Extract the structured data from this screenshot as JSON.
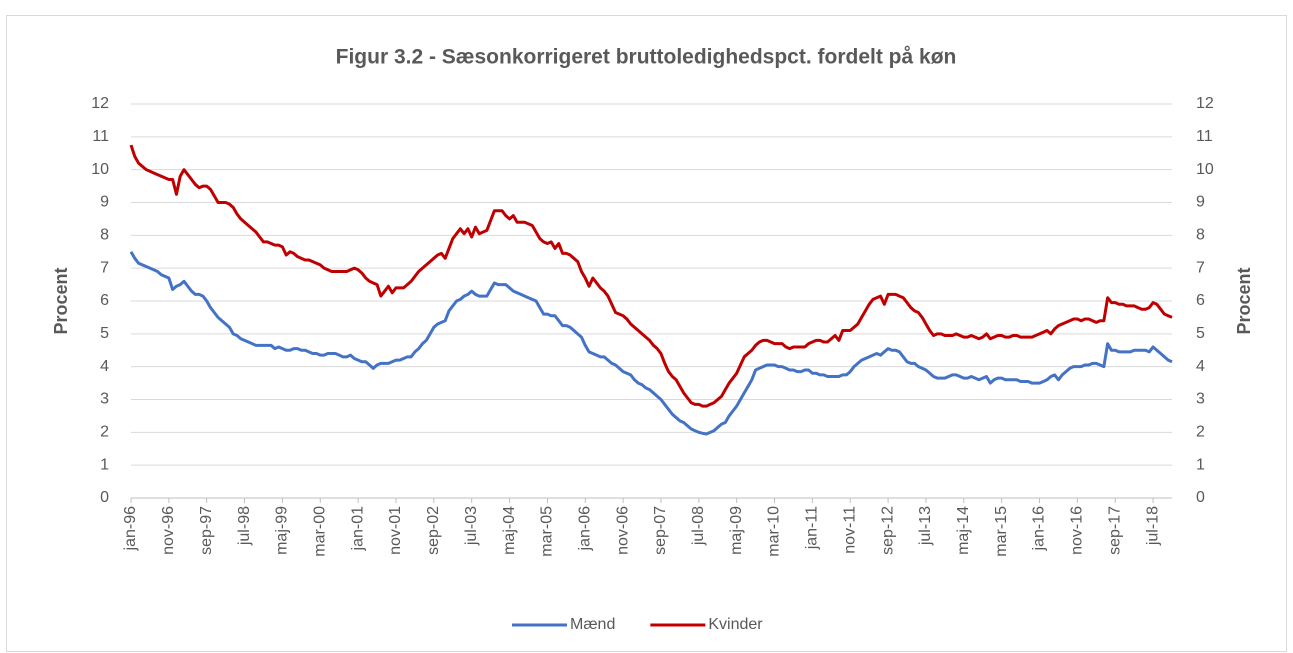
{
  "chart_data": {
    "type": "line",
    "title": "Figur 3.2 - Sæsonkorrigeret bruttoledighedspct. fordelt på køn",
    "y_label": "Procent",
    "y2_label": "Procent",
    "categories": [
      "jan-96",
      null,
      null,
      null,
      null,
      null,
      null,
      null,
      null,
      null,
      "nov-96",
      null,
      null,
      null,
      null,
      null,
      null,
      null,
      null,
      null,
      "sep-97",
      null,
      null,
      null,
      null,
      null,
      null,
      null,
      null,
      null,
      "jul-98",
      null,
      null,
      null,
      null,
      null,
      null,
      null,
      null,
      null,
      "maj-99",
      null,
      null,
      null,
      null,
      null,
      null,
      null,
      null,
      null,
      "mar-00",
      null,
      null,
      null,
      null,
      null,
      null,
      null,
      null,
      null,
      "jan-01",
      null,
      null,
      null,
      null,
      null,
      null,
      null,
      null,
      null,
      "nov-01",
      null,
      null,
      null,
      null,
      null,
      null,
      null,
      null,
      null,
      "sep-02",
      null,
      null,
      null,
      null,
      null,
      null,
      null,
      null,
      null,
      "jul-03",
      null,
      null,
      null,
      null,
      null,
      null,
      null,
      null,
      null,
      "maj-04",
      null,
      null,
      null,
      null,
      null,
      null,
      null,
      null,
      null,
      "mar-05",
      null,
      null,
      null,
      null,
      null,
      null,
      null,
      null,
      null,
      "jan-06",
      null,
      null,
      null,
      null,
      null,
      null,
      null,
      null,
      null,
      "nov-06",
      null,
      null,
      null,
      null,
      null,
      null,
      null,
      null,
      null,
      "sep-07",
      null,
      null,
      null,
      null,
      null,
      null,
      null,
      null,
      null,
      "jul-08",
      null,
      null,
      null,
      null,
      null,
      null,
      null,
      null,
      null,
      "maj-09",
      null,
      null,
      null,
      null,
      null,
      null,
      null,
      null,
      null,
      "mar-10",
      null,
      null,
      null,
      null,
      null,
      null,
      null,
      null,
      null,
      "jan-11",
      null,
      null,
      null,
      null,
      null,
      null,
      null,
      null,
      null,
      "nov-11",
      null,
      null,
      null,
      null,
      null,
      null,
      null,
      null,
      null,
      "sep-12",
      null,
      null,
      null,
      null,
      null,
      null,
      null,
      null,
      null,
      "jul-13",
      null,
      null,
      null,
      null,
      null,
      null,
      null,
      null,
      null,
      "maj-14",
      null,
      null,
      null,
      null,
      null,
      null,
      null,
      null,
      null,
      "mar-15",
      null,
      null,
      null,
      null,
      null,
      null,
      null,
      null,
      null,
      "jan-16",
      null,
      null,
      null,
      null,
      null,
      null,
      null,
      null,
      null,
      "nov-16",
      null,
      null,
      null,
      null,
      null,
      null,
      null,
      null,
      null,
      "sep-17",
      null,
      null,
      null,
      null,
      null,
      null,
      null,
      null,
      null,
      "jul-18",
      null,
      null,
      null,
      null,
      null
    ],
    "series": [
      {
        "name": "Mænd",
        "color": "#4472c4",
        "values": [
          7.5,
          7.3,
          7.15,
          7.1,
          7.05,
          7.0,
          6.95,
          6.9,
          6.8,
          6.75,
          6.7,
          6.35,
          6.45,
          6.5,
          6.6,
          6.45,
          6.3,
          6.2,
          6.2,
          6.15,
          6.0,
          5.8,
          5.65,
          5.5,
          5.4,
          5.3,
          5.2,
          5.0,
          4.95,
          4.85,
          4.8,
          4.75,
          4.7,
          4.65,
          4.65,
          4.65,
          4.65,
          4.65,
          4.55,
          4.6,
          4.55,
          4.5,
          4.5,
          4.55,
          4.55,
          4.5,
          4.5,
          4.45,
          4.4,
          4.4,
          4.35,
          4.35,
          4.4,
          4.4,
          4.4,
          4.35,
          4.3,
          4.3,
          4.35,
          4.25,
          4.2,
          4.15,
          4.15,
          4.05,
          3.95,
          4.05,
          4.1,
          4.1,
          4.1,
          4.15,
          4.2,
          4.2,
          4.25,
          4.3,
          4.3,
          4.45,
          4.55,
          4.7,
          4.8,
          5.0,
          5.2,
          5.3,
          5.35,
          5.4,
          5.7,
          5.85,
          6.0,
          6.05,
          6.15,
          6.2,
          6.3,
          6.2,
          6.15,
          6.15,
          6.15,
          6.35,
          6.55,
          6.5,
          6.5,
          6.5,
          6.4,
          6.3,
          6.25,
          6.2,
          6.15,
          6.1,
          6.05,
          6.0,
          5.8,
          5.6,
          5.6,
          5.55,
          5.55,
          5.4,
          5.25,
          5.25,
          5.2,
          5.1,
          5.0,
          4.9,
          4.65,
          4.45,
          4.4,
          4.35,
          4.3,
          4.3,
          4.2,
          4.1,
          4.05,
          3.95,
          3.85,
          3.8,
          3.75,
          3.6,
          3.5,
          3.45,
          3.35,
          3.3,
          3.2,
          3.1,
          3.0,
          2.85,
          2.7,
          2.55,
          2.45,
          2.35,
          2.3,
          2.2,
          2.1,
          2.05,
          2.0,
          1.97,
          1.95,
          2.0,
          2.05,
          2.15,
          2.25,
          2.3,
          2.5,
          2.65,
          2.8,
          3.0,
          3.2,
          3.4,
          3.6,
          3.9,
          3.95,
          4.0,
          4.05,
          4.05,
          4.05,
          4.0,
          4.0,
          3.95,
          3.9,
          3.9,
          3.85,
          3.85,
          3.9,
          3.9,
          3.8,
          3.8,
          3.75,
          3.75,
          3.7,
          3.7,
          3.7,
          3.7,
          3.75,
          3.75,
          3.85,
          4.0,
          4.1,
          4.2,
          4.25,
          4.3,
          4.35,
          4.4,
          4.35,
          4.45,
          4.55,
          4.5,
          4.5,
          4.45,
          4.3,
          4.15,
          4.1,
          4.1,
          4.0,
          3.95,
          3.9,
          3.8,
          3.7,
          3.65,
          3.65,
          3.65,
          3.7,
          3.75,
          3.75,
          3.7,
          3.65,
          3.65,
          3.7,
          3.65,
          3.6,
          3.65,
          3.7,
          3.5,
          3.6,
          3.65,
          3.65,
          3.6,
          3.6,
          3.6,
          3.6,
          3.55,
          3.55,
          3.55,
          3.5,
          3.5,
          3.5,
          3.55,
          3.6,
          3.7,
          3.75,
          3.6,
          3.75,
          3.85,
          3.95,
          4.0,
          4.0,
          4.0,
          4.05,
          4.05,
          4.1,
          4.1,
          4.05,
          4.0,
          4.7,
          4.5,
          4.5,
          4.45,
          4.45,
          4.45,
          4.45,
          4.5,
          4.5,
          4.5,
          4.5,
          4.45,
          4.6,
          4.5,
          4.4,
          4.3,
          4.2,
          4.15
        ]
      },
      {
        "name": "Kvinder",
        "color": "#c00000",
        "values": [
          10.75,
          10.4,
          10.2,
          10.1,
          10.0,
          9.95,
          9.9,
          9.85,
          9.8,
          9.75,
          9.7,
          9.7,
          9.25,
          9.8,
          10.0,
          9.85,
          9.7,
          9.55,
          9.45,
          9.5,
          9.5,
          9.4,
          9.2,
          9.0,
          9.0,
          9.0,
          8.95,
          8.85,
          8.65,
          8.5,
          8.4,
          8.3,
          8.2,
          8.1,
          7.95,
          7.8,
          7.8,
          7.75,
          7.7,
          7.7,
          7.65,
          7.4,
          7.5,
          7.45,
          7.35,
          7.3,
          7.25,
          7.25,
          7.2,
          7.15,
          7.1,
          7.0,
          6.95,
          6.9,
          6.9,
          6.9,
          6.9,
          6.9,
          6.95,
          7.0,
          6.95,
          6.85,
          6.7,
          6.6,
          6.55,
          6.5,
          6.15,
          6.3,
          6.45,
          6.25,
          6.4,
          6.4,
          6.4,
          6.5,
          6.6,
          6.75,
          6.9,
          7.0,
          7.1,
          7.2,
          7.3,
          7.4,
          7.45,
          7.3,
          7.6,
          7.9,
          8.05,
          8.2,
          8.05,
          8.2,
          7.95,
          8.25,
          8.05,
          8.1,
          8.15,
          8.45,
          8.75,
          8.75,
          8.75,
          8.6,
          8.5,
          8.6,
          8.4,
          8.4,
          8.4,
          8.35,
          8.3,
          8.1,
          7.9,
          7.8,
          7.75,
          7.8,
          7.6,
          7.75,
          7.45,
          7.45,
          7.4,
          7.3,
          7.2,
          6.9,
          6.7,
          6.45,
          6.7,
          6.55,
          6.4,
          6.3,
          6.15,
          5.9,
          5.65,
          5.6,
          5.55,
          5.45,
          5.3,
          5.2,
          5.1,
          5.0,
          4.9,
          4.8,
          4.65,
          4.55,
          4.4,
          4.1,
          3.85,
          3.7,
          3.6,
          3.4,
          3.2,
          3.05,
          2.9,
          2.85,
          2.85,
          2.8,
          2.8,
          2.85,
          2.9,
          3.0,
          3.1,
          3.3,
          3.5,
          3.65,
          3.8,
          4.05,
          4.3,
          4.4,
          4.5,
          4.65,
          4.75,
          4.8,
          4.8,
          4.75,
          4.7,
          4.7,
          4.7,
          4.6,
          4.55,
          4.6,
          4.6,
          4.6,
          4.6,
          4.7,
          4.75,
          4.8,
          4.8,
          4.75,
          4.75,
          4.85,
          4.95,
          4.8,
          5.1,
          5.1,
          5.1,
          5.2,
          5.3,
          5.5,
          5.7,
          5.9,
          6.05,
          6.1,
          6.15,
          5.9,
          6.2,
          6.2,
          6.2,
          6.15,
          6.1,
          5.95,
          5.8,
          5.7,
          5.65,
          5.5,
          5.3,
          5.1,
          4.95,
          5.0,
          5.0,
          4.95,
          4.95,
          4.95,
          5.0,
          4.95,
          4.9,
          4.9,
          4.95,
          4.9,
          4.85,
          4.9,
          5.0,
          4.85,
          4.9,
          4.95,
          4.95,
          4.9,
          4.9,
          4.95,
          4.95,
          4.9,
          4.9,
          4.9,
          4.9,
          4.95,
          5.0,
          5.05,
          5.1,
          5.0,
          5.15,
          5.25,
          5.3,
          5.35,
          5.4,
          5.45,
          5.45,
          5.4,
          5.45,
          5.45,
          5.4,
          5.35,
          5.4,
          5.4,
          6.1,
          5.95,
          5.95,
          5.9,
          5.9,
          5.85,
          5.85,
          5.85,
          5.8,
          5.75,
          5.75,
          5.8,
          5.95,
          5.9,
          5.75,
          5.6,
          5.55,
          5.5
        ]
      }
    ],
    "ylim": [
      0,
      12
    ],
    "yticks": [
      0,
      1,
      2,
      3,
      4,
      5,
      6,
      7,
      8,
      9,
      10,
      11,
      12
    ],
    "y2lim": [
      0,
      12
    ],
    "y2ticks": [
      0,
      1,
      2,
      3,
      4,
      5,
      6,
      7,
      8,
      9,
      10,
      11,
      12
    ],
    "grid": true,
    "legend": "bottom"
  }
}
